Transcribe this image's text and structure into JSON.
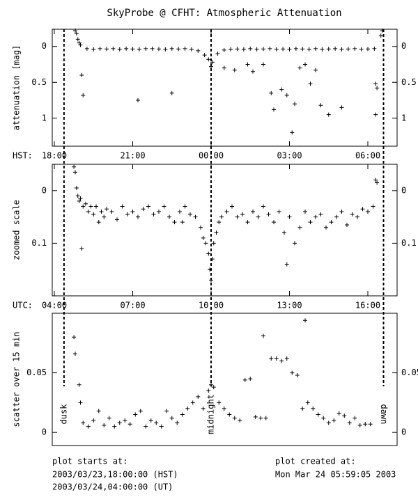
{
  "title": "SkyProbe @ CFHT: Atmospheric Attenuation",
  "footer": {
    "left_label": "plot starts at:",
    "left_hst": "2003/03/23,18:00:00 (HST)",
    "left_ut": "2003/03/24,04:00:00 (UT)",
    "right_label": "plot created at:",
    "right_date": "Mon Mar 24 05:59:05 2003"
  },
  "markers": [
    {
      "x": 0.37,
      "label": "dusk"
    },
    {
      "x": 6.0,
      "label": "midnight"
    },
    {
      "x": 12.6,
      "label": "dawn"
    }
  ],
  "chart_data": [
    {
      "type": "scatter",
      "ylabel": "attenuation [mag]",
      "xlabel": "HST:",
      "xlim": [
        -0.08,
        13.12
      ],
      "ylim": [
        1.39,
        -0.24
      ],
      "yticks": [
        0,
        0.5,
        1
      ],
      "xticks": [
        {
          "value": 0,
          "label": "18:00"
        },
        {
          "value": 3,
          "label": "21:00"
        },
        {
          "value": 6,
          "label": "00:00"
        },
        {
          "value": 9,
          "label": "03:00"
        },
        {
          "value": 12,
          "label": "06:00"
        }
      ],
      "x": [
        0.8,
        0.85,
        0.9,
        0.95,
        1.0,
        1.05,
        1.1,
        1.25,
        1.5,
        1.75,
        2.0,
        2.25,
        2.5,
        2.75,
        3.0,
        3.25,
        3.5,
        3.75,
        4.0,
        4.25,
        4.5,
        4.75,
        5.0,
        5.25,
        5.5,
        5.75,
        6.0,
        6.25,
        6.5,
        6.75,
        7.0,
        7.25,
        7.5,
        7.75,
        8.0,
        8.25,
        8.5,
        8.75,
        9.0,
        9.25,
        9.5,
        9.75,
        10.0,
        10.25,
        10.5,
        10.75,
        11.0,
        11.25,
        11.5,
        11.75,
        12.0,
        12.25,
        5.9,
        6.05,
        3.2,
        4.5,
        6.5,
        6.9,
        7.4,
        7.6,
        8.0,
        8.3,
        8.4,
        8.7,
        8.9,
        9.1,
        9.2,
        9.4,
        9.6,
        9.8,
        10.0,
        10.2,
        10.5,
        11.0,
        12.3,
        12.35,
        12.3,
        12.5,
        12.55
      ],
      "values": [
        -0.22,
        -0.18,
        -0.1,
        -0.05,
        -0.02,
        0.4,
        0.68,
        0.03,
        0.04,
        0.03,
        0.035,
        0.03,
        0.04,
        0.03,
        0.035,
        0.04,
        0.03,
        0.03,
        0.035,
        0.04,
        0.03,
        0.035,
        0.03,
        0.04,
        0.06,
        0.12,
        0.28,
        0.1,
        0.05,
        0.04,
        0.035,
        0.04,
        0.03,
        0.04,
        0.035,
        0.03,
        0.04,
        0.035,
        0.04,
        0.03,
        0.035,
        0.04,
        0.03,
        0.04,
        0.035,
        0.03,
        0.04,
        0.035,
        0.03,
        0.04,
        0.035,
        0.03,
        0.18,
        0.22,
        0.75,
        0.65,
        0.3,
        0.33,
        0.25,
        0.35,
        0.25,
        0.65,
        0.88,
        0.6,
        0.68,
        1.2,
        0.8,
        0.3,
        0.25,
        0.52,
        0.33,
        0.82,
        0.95,
        0.85,
        0.52,
        0.58,
        0.95,
        -0.15,
        -0.22
      ]
    },
    {
      "type": "scatter",
      "ylabel": "zoomed scale",
      "xlabel": "UTC:",
      "xlim": [
        -0.08,
        13.12
      ],
      "ylim": [
        0.2,
        -0.05
      ],
      "yticks": [
        0,
        0.1
      ],
      "xticks": [
        {
          "value": 0,
          "label": "04:00"
        },
        {
          "value": 3,
          "label": "07:00"
        },
        {
          "value": 6,
          "label": "10:00"
        },
        {
          "value": 9,
          "label": "13:00"
        },
        {
          "value": 12,
          "label": "16:00"
        }
      ],
      "x": [
        0.75,
        0.8,
        0.85,
        0.9,
        0.95,
        1.0,
        1.1,
        1.2,
        1.3,
        1.4,
        1.5,
        1.6,
        1.7,
        1.8,
        1.9,
        2.0,
        2.2,
        2.4,
        2.6,
        2.8,
        3.0,
        3.2,
        3.4,
        3.6,
        3.8,
        4.0,
        4.2,
        4.4,
        4.6,
        4.8,
        5.0,
        5.2,
        5.4,
        5.6,
        5.7,
        5.8,
        5.9,
        5.95,
        6.0,
        6.05,
        6.1,
        6.2,
        6.3,
        6.4,
        6.6,
        6.8,
        7.0,
        7.2,
        7.4,
        7.6,
        7.8,
        8.0,
        8.2,
        8.4,
        8.6,
        8.8,
        9.0,
        9.2,
        9.4,
        9.6,
        9.8,
        10.0,
        10.2,
        10.4,
        10.6,
        10.8,
        11.0,
        11.2,
        11.4,
        11.6,
        11.8,
        12.0,
        12.2,
        12.3,
        12.35,
        1.05,
        4.9,
        8.9
      ],
      "values": [
        -0.045,
        -0.035,
        -0.005,
        0.01,
        0.02,
        0.015,
        0.03,
        0.025,
        0.04,
        0.03,
        0.045,
        0.03,
        0.06,
        0.04,
        0.05,
        0.035,
        0.04,
        0.055,
        0.03,
        0.045,
        0.04,
        0.05,
        0.035,
        0.03,
        0.045,
        0.04,
        0.03,
        0.05,
        0.06,
        0.04,
        0.03,
        0.045,
        0.05,
        0.07,
        0.09,
        0.1,
        0.12,
        0.15,
        0.17,
        0.13,
        0.1,
        0.08,
        0.06,
        0.05,
        0.04,
        0.03,
        0.05,
        0.045,
        0.06,
        0.04,
        0.05,
        0.03,
        0.045,
        0.06,
        0.04,
        0.08,
        0.05,
        0.1,
        0.07,
        0.04,
        0.06,
        0.05,
        0.045,
        0.07,
        0.06,
        0.05,
        0.04,
        0.065,
        0.045,
        0.05,
        0.035,
        0.04,
        0.03,
        -0.02,
        -0.015,
        0.11,
        0.06,
        0.14
      ]
    },
    {
      "type": "scatter",
      "ylabel": "scatter over 15 min",
      "xlim": [
        -0.08,
        13.12
      ],
      "ylim": [
        -0.011,
        0.1
      ],
      "yticks": [
        0,
        0.05
      ],
      "x": [
        0.75,
        0.8,
        0.95,
        1.0,
        1.1,
        1.3,
        1.5,
        1.7,
        1.9,
        2.1,
        2.3,
        2.5,
        2.7,
        2.9,
        3.1,
        3.3,
        3.5,
        3.7,
        3.9,
        4.1,
        4.3,
        4.5,
        4.7,
        4.9,
        5.1,
        5.3,
        5.5,
        5.7,
        5.9,
        6.0,
        6.1,
        6.3,
        6.5,
        6.7,
        6.9,
        7.1,
        7.3,
        7.5,
        7.7,
        7.9,
        8.1,
        8.3,
        8.5,
        8.7,
        8.9,
        9.1,
        9.3,
        9.5,
        9.7,
        9.9,
        10.1,
        10.3,
        10.5,
        10.7,
        10.9,
        11.1,
        11.3,
        11.5,
        11.7,
        11.9,
        12.1,
        9.6,
        8.0
      ],
      "values": [
        0.08,
        0.066,
        0.04,
        0.025,
        0.008,
        0.005,
        0.01,
        0.018,
        0.006,
        0.012,
        0.005,
        0.008,
        0.01,
        0.007,
        0.015,
        0.018,
        0.005,
        0.01,
        0.008,
        0.005,
        0.018,
        0.012,
        0.008,
        0.015,
        0.02,
        0.025,
        0.03,
        0.02,
        0.035,
        0.04,
        0.038,
        0.025,
        0.02,
        0.015,
        0.012,
        0.01,
        0.044,
        0.045,
        0.013,
        0.012,
        0.012,
        0.062,
        0.062,
        0.06,
        0.062,
        0.05,
        0.048,
        0.02,
        0.025,
        0.02,
        0.015,
        0.012,
        0.008,
        0.01,
        0.016,
        0.014,
        0.008,
        0.012,
        0.006,
        0.007,
        0.007,
        0.094,
        0.081
      ]
    }
  ]
}
